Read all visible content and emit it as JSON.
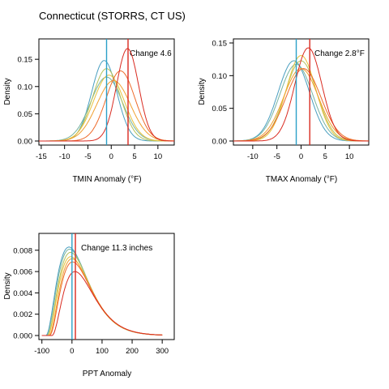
{
  "page_title": "Connecticut (STORRS, CT US)",
  "colors": {
    "series": [
      "#4a9fc0",
      "#79b4a0",
      "#b5c25c",
      "#e8c23c",
      "#f0a030",
      "#ee6a2a",
      "#d92a20"
    ],
    "baseline_line": "#2aa0c8",
    "future_line": "#d92a20",
    "axis": "#000000"
  },
  "chart_data": [
    {
      "type": "line",
      "xlabel": "TMIN Anomaly (°F)",
      "ylabel": "Density",
      "annotation": "Change 4.6",
      "xlim": [
        -15.5,
        13.5
      ],
      "ylim": [
        0,
        0.18
      ],
      "x_ticks": [
        -15,
        -10,
        -5,
        0,
        5,
        10
      ],
      "x_tick_labels": [
        "-15",
        "-10",
        "-5",
        "0",
        "5",
        "10"
      ],
      "y_ticks": [
        0,
        0.05,
        0.1,
        0.15
      ],
      "y_tick_labels": [
        "0.00",
        "0.05",
        "0.10",
        "0.15"
      ],
      "baseline_x": -1.0,
      "future_x": 3.6,
      "series": [
        {
          "mean": -1.5,
          "sd": 2.7
        },
        {
          "mean": -1.0,
          "sd": 3.4
        },
        {
          "mean": -1.0,
          "sd": 3.0
        },
        {
          "mean": -0.5,
          "sd": 3.3
        },
        {
          "mean": 0.5,
          "sd": 3.6
        },
        {
          "mean": 2.0,
          "sd": 3.1
        },
        {
          "mean": 3.5,
          "sd": 2.35
        }
      ]
    },
    {
      "type": "line",
      "xlabel": "TMAX Anomaly (°F)",
      "ylabel": "Density",
      "annotation": "Change 2.8°F",
      "xlim": [
        -14,
        14
      ],
      "ylim": [
        0,
        0.15
      ],
      "x_ticks": [
        -10,
        -5,
        0,
        5,
        10
      ],
      "x_tick_labels": [
        "-10",
        "-5",
        "0",
        "5",
        "10"
      ],
      "y_ticks": [
        0,
        0.05,
        0.1,
        0.15
      ],
      "y_tick_labels": [
        "0.00",
        "0.05",
        "0.10",
        "0.15"
      ],
      "baseline_x": -1.0,
      "future_x": 1.8,
      "series": [
        {
          "mean": -1.5,
          "sd": 3.25
        },
        {
          "mean": -1.0,
          "sd": 3.4
        },
        {
          "mean": 0.0,
          "sd": 3.25
        },
        {
          "mean": 0.0,
          "sd": 3.05
        },
        {
          "mean": 0.0,
          "sd": 3.6
        },
        {
          "mean": 0.5,
          "sd": 3.6
        },
        {
          "mean": 1.5,
          "sd": 2.8
        }
      ]
    },
    {
      "type": "line",
      "xlabel": "PPT Anomaly",
      "ylabel": "Density",
      "annotation": "Change 11.3 inches",
      "xlim": [
        -110,
        340
      ],
      "ylim": [
        0,
        0.0092
      ],
      "x_ticks": [
        -100,
        0,
        100,
        200,
        300
      ],
      "x_tick_labels": [
        "-100",
        "0",
        "100",
        "200",
        "300"
      ],
      "y_ticks": [
        0,
        0.002,
        0.004,
        0.006,
        0.008
      ],
      "y_tick_labels": [
        "0.000",
        "0.002",
        "0.004",
        "0.006",
        "0.008"
      ],
      "baseline_x": 0.0,
      "future_x": 11.3,
      "series": [
        {
          "mode": -10,
          "peak": 0.0083
        },
        {
          "mode": -8,
          "peak": 0.0081
        },
        {
          "mode": -5,
          "peak": 0.0078
        },
        {
          "mode": -4,
          "peak": 0.0074
        },
        {
          "mode": 0,
          "peak": 0.0072
        },
        {
          "mode": 2,
          "peak": 0.0069
        },
        {
          "mode": 10,
          "peak": 0.006
        }
      ]
    }
  ]
}
